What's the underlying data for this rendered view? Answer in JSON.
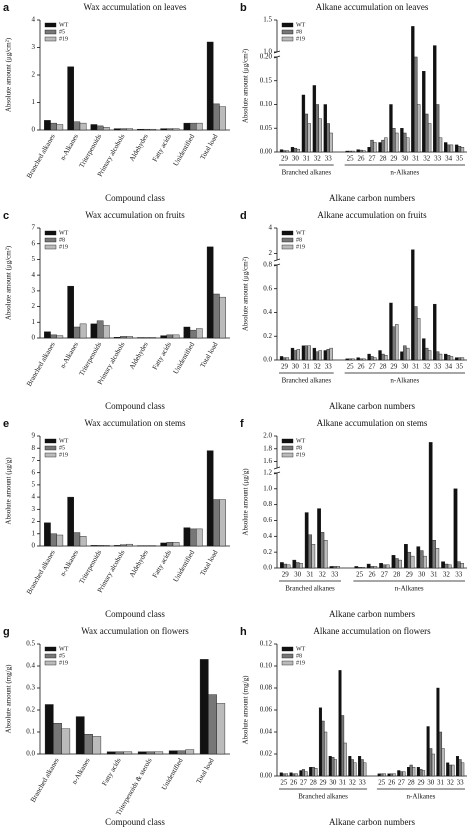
{
  "chart_data": [
    {
      "type": "bar",
      "panel": "a",
      "title": "Wax accumulation on leaves",
      "x_label": "Compound class",
      "y_label": "Absolute amount (μg/cm²)",
      "categories": [
        "Branched alkanes",
        "n-Alkanes",
        "Triterpenoids",
        "Primary alcohols",
        "Aldehydes",
        "Fatty acids",
        "Unidentified",
        "Total load"
      ],
      "series": [
        {
          "name": "WT",
          "color": "#111111",
          "values": [
            0.35,
            2.3,
            0.2,
            0.05,
            0.03,
            0.05,
            0.25,
            3.2
          ]
        },
        {
          "name": "#5",
          "color": "#777777",
          "values": [
            0.25,
            0.3,
            0.15,
            0.05,
            0.03,
            0.05,
            0.25,
            0.95
          ]
        },
        {
          "name": "#19",
          "color": "#bbbbbb",
          "values": [
            0.2,
            0.25,
            0.1,
            0.05,
            0.03,
            0.05,
            0.25,
            0.85
          ]
        }
      ],
      "ylim": [
        0,
        4
      ],
      "yticks": [
        0,
        1,
        2,
        3,
        4
      ]
    },
    {
      "type": "bar",
      "panel": "b",
      "title": "Alkane accumulation on leaves",
      "x_label": "Alkane carbon numbers",
      "y_label": "Absolute amount (μg/cm²)",
      "groups": [
        {
          "name": "Branched alkanes",
          "categories": [
            "29",
            "30",
            "31",
            "32",
            "33"
          ]
        },
        {
          "name": "n-Alkanes",
          "categories": [
            "25",
            "26",
            "27",
            "28",
            "29",
            "30",
            "31",
            "32",
            "33",
            "34",
            "35"
          ]
        }
      ],
      "series": [
        {
          "name": "WT",
          "color": "#111111",
          "values": [
            0.005,
            0.01,
            0.12,
            0.14,
            0.1,
            0.002,
            0.005,
            0.01,
            0.02,
            0.1,
            0.05,
            1.4,
            0.17,
            1.1,
            0.02,
            0.015
          ]
        },
        {
          "name": "#8",
          "color": "#777777",
          "values": [
            0.003,
            0.008,
            0.08,
            0.1,
            0.06,
            0.002,
            0.004,
            0.025,
            0.025,
            0.05,
            0.04,
            0.2,
            0.08,
            0.1,
            0.015,
            0.012
          ]
        },
        {
          "name": "#19",
          "color": "#bbbbbb",
          "values": [
            0.003,
            0.006,
            0.06,
            0.07,
            0.04,
            0.002,
            0.003,
            0.02,
            0.03,
            0.04,
            0.03,
            0.1,
            0.06,
            0.03,
            0.015,
            0.01
          ]
        }
      ],
      "ylim": [
        0,
        1.5
      ],
      "ybreak": [
        0.2,
        1.0
      ],
      "yticks": [
        {
          "value": 0,
          "label": "0.00"
        },
        {
          "value": 0.05,
          "label": "0.05"
        },
        {
          "value": 0.1,
          "label": "0.10"
        },
        {
          "value": 0.15,
          "label": "0.15"
        },
        {
          "value": 0.2,
          "label": "0.20"
        },
        {
          "value": 1,
          "label": "1.0"
        },
        1.5
      ]
    },
    {
      "type": "bar",
      "panel": "c",
      "title": "Wax accumulation on fruits",
      "x_label": "Compound class",
      "y_label": "Absolute amount (μg/cm²)",
      "categories": [
        "Branched alkanes",
        "n-Alkanes",
        "Triterpenoids",
        "Primary alcohols",
        "Aldehydes",
        "Fatty acids",
        "Unidentified",
        "Total load"
      ],
      "series": [
        {
          "name": "WT",
          "color": "#111111",
          "values": [
            0.4,
            3.3,
            0.9,
            0.05,
            0.03,
            0.15,
            0.7,
            5.8
          ]
        },
        {
          "name": "#8",
          "color": "#777777",
          "values": [
            0.2,
            0.7,
            1.1,
            0.1,
            0.03,
            0.2,
            0.5,
            2.8
          ]
        },
        {
          "name": "#19",
          "color": "#bbbbbb",
          "values": [
            0.15,
            0.9,
            0.8,
            0.1,
            0.03,
            0.2,
            0.6,
            2.6
          ]
        }
      ],
      "ylim": [
        0,
        7
      ],
      "yticks": [
        0,
        1,
        2,
        3,
        4,
        5,
        6,
        7
      ]
    },
    {
      "type": "bar",
      "panel": "d",
      "title": "Alkane accumulation on fruits",
      "x_label": "Alkane carbon numbers",
      "y_label": "Absolute amount (μg/cm²)",
      "groups": [
        {
          "name": "Branched alkanes",
          "categories": [
            "29",
            "30",
            "31",
            "32",
            "33"
          ]
        },
        {
          "name": "n-Alkanes",
          "categories": [
            "25",
            "26",
            "27",
            "28",
            "29",
            "30",
            "31",
            "32",
            "33",
            "34",
            "35"
          ]
        }
      ],
      "series": [
        {
          "name": "WT",
          "color": "#111111",
          "values": [
            0.03,
            0.1,
            0.12,
            0.1,
            0.08,
            0.01,
            0.02,
            0.05,
            0.08,
            0.48,
            0.07,
            2.3,
            0.18,
            0.47,
            0.05,
            0.02
          ]
        },
        {
          "name": "#8",
          "color": "#777777",
          "values": [
            0.02,
            0.08,
            0.12,
            0.07,
            0.09,
            0.01,
            0.01,
            0.03,
            0.05,
            0.28,
            0.12,
            0.45,
            0.1,
            0.07,
            0.04,
            0.02
          ]
        },
        {
          "name": "#19",
          "color": "#bbbbbb",
          "values": [
            0.02,
            0.09,
            0.12,
            0.08,
            0.1,
            0.01,
            0.01,
            0.02,
            0.04,
            0.3,
            0.1,
            0.35,
            0.08,
            0.05,
            0.03,
            0.02
          ]
        }
      ],
      "ylim": [
        0,
        4
      ],
      "ybreak": [
        0.8,
        1.5
      ],
      "yticks": [
        {
          "value": 0,
          "label": "0.0"
        },
        0.2,
        0.4,
        0.6,
        0.8,
        2,
        4
      ]
    },
    {
      "type": "bar",
      "panel": "e",
      "title": "Wax accumulation on stems",
      "x_label": "Compound class",
      "y_label": "Absolute amount (μg/g)",
      "categories": [
        "Branched alkanes",
        "n-Alkanes",
        "Triterpenoids",
        "Primary alcohols",
        "Aldehydes",
        "Fatty acids",
        "Unidentified",
        "Total load"
      ],
      "series": [
        {
          "name": "WT",
          "color": "#111111",
          "values": [
            1.9,
            4.0,
            0.05,
            0.05,
            0.03,
            0.25,
            1.5,
            7.8
          ]
        },
        {
          "name": "#5",
          "color": "#777777",
          "values": [
            1.0,
            1.1,
            0.05,
            0.1,
            0.03,
            0.3,
            1.4,
            3.8
          ]
        },
        {
          "name": "#19",
          "color": "#bbbbbb",
          "values": [
            0.9,
            0.8,
            0.05,
            0.15,
            0.03,
            0.3,
            1.4,
            3.8
          ]
        }
      ],
      "ylim": [
        0,
        9
      ],
      "yticks": [
        0,
        1,
        2,
        3,
        4,
        5,
        6,
        7,
        8,
        9
      ]
    },
    {
      "type": "bar",
      "panel": "f",
      "title": "Alkane accumulation on stems",
      "x_label": "Alkane carbon numbers",
      "y_label": "Absolute amount (μg/g)",
      "groups": [
        {
          "name": "Branched alkanes",
          "categories": [
            "29",
            "30",
            "31",
            "32",
            "33"
          ]
        },
        {
          "name": "n-Alkanes",
          "categories": [
            "25",
            "26",
            "27",
            "28",
            "29",
            "30",
            "31",
            "32",
            "33"
          ]
        }
      ],
      "series": [
        {
          "name": "WT",
          "color": "#111111",
          "values": [
            0.07,
            0.1,
            0.7,
            0.75,
            0.02,
            0.02,
            0.05,
            0.06,
            0.16,
            0.3,
            0.27,
            1.9,
            0.08,
            1.0
          ]
        },
        {
          "name": "#8",
          "color": "#777777",
          "values": [
            0.05,
            0.07,
            0.42,
            0.45,
            0.02,
            0.01,
            0.02,
            0.04,
            0.12,
            0.2,
            0.22,
            0.35,
            0.05,
            0.08
          ]
        },
        {
          "name": "#19",
          "color": "#bbbbbb",
          "values": [
            0.04,
            0.06,
            0.3,
            0.35,
            0.02,
            0.01,
            0.02,
            0.04,
            0.1,
            0.15,
            0.15,
            0.25,
            0.04,
            0.06
          ]
        }
      ],
      "ylim": [
        0,
        2.0
      ],
      "ybreak": [
        1.2,
        1.5
      ],
      "yticks": [
        {
          "value": 0,
          "label": "0.0"
        },
        0.2,
        0.4,
        0.6,
        0.8,
        {
          "value": 1,
          "label": "1.0"
        },
        1.2,
        1.6,
        1.8,
        {
          "value": 2,
          "label": "2.0"
        }
      ]
    },
    {
      "type": "bar",
      "panel": "g",
      "title": "Wax accumulation on flowers",
      "x_label": "Compound class",
      "y_label": "Absolute amount (mg/g)",
      "categories": [
        "Branched alkanes",
        "n-Alkanes",
        "Fatty acids",
        "Triterpenoids & sterols",
        "Unidentified",
        "Total load"
      ],
      "series": [
        {
          "name": "WT",
          "color": "#111111",
          "values": [
            0.225,
            0.17,
            0.01,
            0.01,
            0.015,
            0.43
          ]
        },
        {
          "name": "#5",
          "color": "#777777",
          "values": [
            0.14,
            0.09,
            0.01,
            0.01,
            0.015,
            0.27
          ]
        },
        {
          "name": "#19",
          "color": "#bbbbbb",
          "values": [
            0.115,
            0.08,
            0.01,
            0.01,
            0.02,
            0.23
          ]
        }
      ],
      "ylim": [
        0,
        0.5
      ],
      "yticks": [
        {
          "value": 0,
          "label": "0.0"
        },
        0.1,
        0.2,
        0.3,
        0.4,
        0.5
      ]
    },
    {
      "type": "bar",
      "panel": "h",
      "title": "Alkane accumulation on flowers",
      "x_label": "Alkane carbon numbers",
      "y_label": "Absolute amount (mg/g)",
      "groups": [
        {
          "name": "Branched alkanes",
          "categories": [
            "25",
            "26",
            "27",
            "28",
            "29",
            "30",
            "31",
            "32",
            "33"
          ]
        },
        {
          "name": "n-Alkanes",
          "categories": [
            "25",
            "26",
            "27",
            "28",
            "29",
            "30",
            "31",
            "32",
            "33"
          ]
        }
      ],
      "series": [
        {
          "name": "WT",
          "color": "#111111",
          "values": [
            0.003,
            0.003,
            0.005,
            0.008,
            0.062,
            0.018,
            0.096,
            0.018,
            0.018,
            0.002,
            0.002,
            0.005,
            0.008,
            0.008,
            0.045,
            0.08,
            0.012,
            0.018
          ]
        },
        {
          "name": "#8",
          "color": "#777777",
          "values": [
            0.002,
            0.002,
            0.006,
            0.008,
            0.05,
            0.017,
            0.055,
            0.015,
            0.015,
            0.002,
            0.002,
            0.004,
            0.01,
            0.006,
            0.025,
            0.04,
            0.01,
            0.015
          ]
        },
        {
          "name": "#19",
          "color": "#bbbbbb",
          "values": [
            0.002,
            0.002,
            0.004,
            0.007,
            0.04,
            0.015,
            0.03,
            0.012,
            0.012,
            0.002,
            0.002,
            0.004,
            0.008,
            0.005,
            0.02,
            0.025,
            0.01,
            0.012
          ]
        }
      ],
      "ylim": [
        0,
        0.12
      ],
      "yticks": [
        {
          "value": 0,
          "label": "0.00"
        },
        0.02,
        0.04,
        0.06,
        0.08,
        {
          "value": 0.1,
          "label": "0.10"
        },
        0.12
      ]
    }
  ]
}
